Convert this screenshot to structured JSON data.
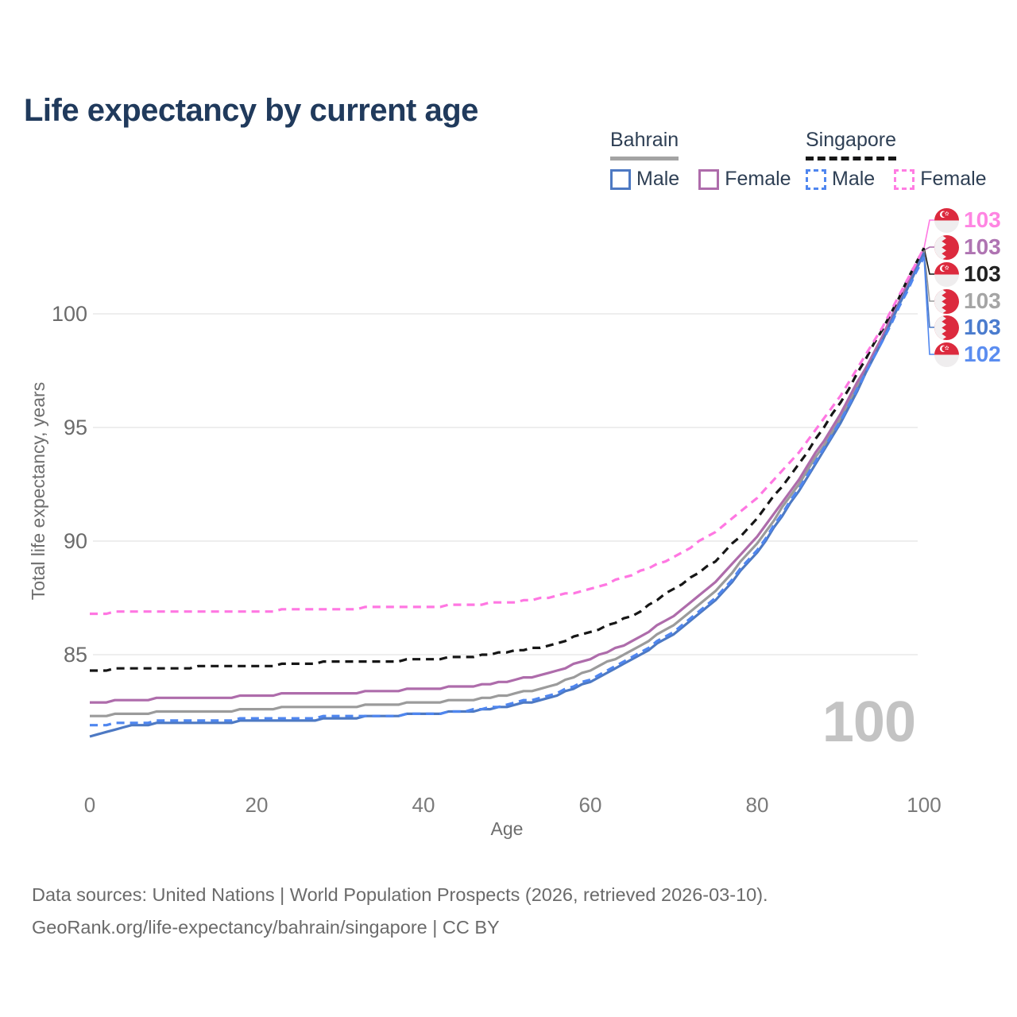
{
  "title": "Life expectancy by current age",
  "watermark": "100",
  "legend": {
    "groups": [
      {
        "country": "Bahrain",
        "line_style": "solid",
        "underline_color": "#a3a3a3",
        "items": [
          {
            "label": "Male",
            "color": "#4d79c3",
            "dashed": false
          },
          {
            "label": "Female",
            "color": "#ae6cab",
            "dashed": false
          }
        ]
      },
      {
        "country": "Singapore",
        "line_style": "dashed",
        "underline_color": "#161616",
        "items": [
          {
            "label": "Male",
            "color": "#4f86ef",
            "dashed": true
          },
          {
            "label": "Female",
            "color": "#ff7ce2",
            "dashed": true
          }
        ]
      }
    ]
  },
  "end_labels": [
    {
      "flag": "sg",
      "series": "singapore_female",
      "value": "103",
      "color": "#ff85e2"
    },
    {
      "flag": "bh",
      "series": "bahrain_female",
      "value": "103",
      "color": "#af74b2"
    },
    {
      "flag": "sg",
      "series": "singapore_total",
      "value": "103",
      "color": "#222222"
    },
    {
      "flag": "bh",
      "series": "bahrain_total",
      "value": "103",
      "color": "#a5a5a5"
    },
    {
      "flag": "bh",
      "series": "bahrain_male",
      "value": "103",
      "color": "#4b7cce"
    },
    {
      "flag": "sg",
      "series": "singapore_male",
      "value": "102",
      "color": "#5b8df0"
    }
  ],
  "chart_data": {
    "type": "line",
    "title": "Life expectancy by current age",
    "xlabel": "Age",
    "ylabel": "Total life expectancy, years",
    "x_ticks": [
      0,
      20,
      40,
      60,
      80,
      100
    ],
    "y_ticks": [
      85,
      90,
      95,
      100
    ],
    "xlim": [
      0,
      100
    ],
    "ylim": [
      81,
      103.5
    ],
    "grid": "horizontal",
    "legend_position": "top-right",
    "x": [
      0,
      5,
      10,
      15,
      20,
      25,
      30,
      35,
      40,
      45,
      50,
      55,
      60,
      65,
      70,
      75,
      80,
      85,
      90,
      95,
      100
    ],
    "series": [
      {
        "key": "bahrain_total",
        "name": "Bahrain",
        "country": "Bahrain",
        "sex": "Total",
        "color": "#9b9b9b",
        "dashed": false,
        "values": [
          82.3,
          82.4,
          82.5,
          82.5,
          82.6,
          82.7,
          82.7,
          82.8,
          82.9,
          83.0,
          83.2,
          83.6,
          84.3,
          85.2,
          86.3,
          87.8,
          89.9,
          92.5,
          95.4,
          98.9,
          102.8
        ]
      },
      {
        "key": "bahrain_female",
        "name": "Bahrain Female",
        "country": "Bahrain",
        "sex": "Female",
        "color": "#ae6cab",
        "dashed": false,
        "values": [
          82.9,
          83.0,
          83.1,
          83.1,
          83.2,
          83.3,
          83.3,
          83.4,
          83.5,
          83.6,
          83.8,
          84.2,
          84.8,
          85.6,
          86.7,
          88.2,
          90.2,
          92.7,
          95.6,
          99.0,
          102.8
        ]
      },
      {
        "key": "singapore_total",
        "name": "Singapore",
        "country": "Singapore",
        "sex": "Total",
        "color": "#161616",
        "dashed": true,
        "values": [
          84.3,
          84.4,
          84.4,
          84.5,
          84.5,
          84.6,
          84.7,
          84.7,
          84.8,
          84.9,
          85.1,
          85.4,
          86.0,
          86.7,
          87.9,
          89.1,
          91.0,
          93.4,
          96.1,
          99.3,
          102.9
        ]
      },
      {
        "key": "singapore_female",
        "name": "Singapore Female",
        "country": "Singapore",
        "sex": "Female",
        "color": "#ff77e2",
        "dashed": true,
        "values": [
          86.8,
          86.9,
          86.9,
          86.9,
          86.9,
          87.0,
          87.0,
          87.1,
          87.1,
          87.2,
          87.3,
          87.5,
          87.9,
          88.5,
          89.3,
          90.4,
          91.9,
          93.9,
          96.4,
          99.4,
          102.9
        ]
      },
      {
        "key": "bahrain_male",
        "name": "Bahrain Male",
        "country": "Bahrain",
        "sex": "Male",
        "color": "#4d79c3",
        "dashed": false,
        "values": [
          81.4,
          81.9,
          82.0,
          82.0,
          82.1,
          82.1,
          82.2,
          82.3,
          82.4,
          82.5,
          82.7,
          83.1,
          83.8,
          84.8,
          85.9,
          87.4,
          89.5,
          92.2,
          95.2,
          98.8,
          102.7
        ]
      },
      {
        "key": "singapore_male",
        "name": "Singapore Male",
        "country": "Singapore",
        "sex": "Male",
        "color": "#4f86ef",
        "dashed": true,
        "values": [
          81.9,
          82.0,
          82.1,
          82.1,
          82.2,
          82.2,
          82.3,
          82.3,
          82.4,
          82.5,
          82.8,
          83.2,
          83.9,
          84.9,
          86.0,
          87.5,
          89.6,
          92.3,
          95.3,
          98.8,
          102.5
        ]
      }
    ]
  },
  "footer": {
    "line1": "Data sources: United Nations | World Population Prospects (2026, retrieved 2026-03-10).",
    "line2": "GeoRank.org/life-expectancy/bahrain/singapore | CC BY"
  }
}
